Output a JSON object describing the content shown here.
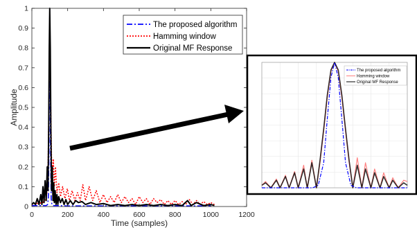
{
  "chart_data": [
    {
      "type": "line",
      "xlabel": "Time (samples)",
      "ylabel": "Amplitude",
      "xlim": [
        0,
        1200
      ],
      "ylim": [
        0,
        1
      ],
      "xticks": [
        0,
        200,
        400,
        600,
        800,
        1000,
        1200
      ],
      "yticks": [
        0,
        0.1,
        0.2,
        0.3,
        0.4,
        0.5,
        0.6,
        0.7,
        0.8,
        0.9,
        1
      ],
      "ytick_labels": [
        "0",
        "0.1",
        "0.2",
        "0.3",
        "0.4",
        "0.5",
        "0.6",
        "0.7",
        "0.8",
        "0.9",
        "1"
      ],
      "grid": false,
      "legend_position": "top-right",
      "series": [
        {
          "name": "The proposed algorithm",
          "color": "#0000ff",
          "style": "dash-dot",
          "x": [
            0,
            80,
            88,
            92,
            96,
            98,
            100,
            102,
            104,
            108,
            112,
            120,
            200,
            1000
          ],
          "y": [
            0.005,
            0.005,
            0.01,
            0.04,
            0.3,
            0.7,
            1.0,
            0.7,
            0.3,
            0.04,
            0.01,
            0.005,
            0.003,
            0.003
          ]
        },
        {
          "name": "Hamming window",
          "color": "#ff0000",
          "style": "dotted",
          "x": [
            0,
            15,
            25,
            35,
            45,
            55,
            62,
            70,
            78,
            84,
            90,
            95,
            100,
            105,
            110,
            115,
            120,
            126,
            132,
            140,
            150,
            160,
            172,
            185,
            198,
            210,
            225,
            240,
            255,
            270,
            285,
            300,
            320,
            340,
            360,
            380,
            400,
            420,
            440,
            460,
            480,
            500,
            520,
            540,
            560,
            580,
            600,
            620,
            640,
            660,
            680,
            700,
            720,
            740,
            760,
            780,
            800,
            820,
            840,
            860,
            880,
            900,
            920,
            940,
            960,
            980,
            1000,
            1020
          ],
          "y": [
            0.01,
            0.015,
            0.01,
            0.02,
            0.01,
            0.03,
            0.02,
            0.04,
            0.03,
            0.07,
            0.2,
            0.5,
            0.85,
            0.55,
            0.25,
            0.15,
            0.24,
            0.1,
            0.2,
            0.07,
            0.12,
            0.05,
            0.1,
            0.04,
            0.09,
            0.03,
            0.08,
            0.03,
            0.07,
            0.03,
            0.11,
            0.03,
            0.1,
            0.03,
            0.08,
            0.02,
            0.06,
            0.02,
            0.05,
            0.02,
            0.06,
            0.02,
            0.05,
            0.02,
            0.04,
            0.01,
            0.05,
            0.02,
            0.04,
            0.01,
            0.04,
            0.02,
            0.035,
            0.01,
            0.03,
            0.01,
            0.03,
            0.01,
            0.025,
            0.01,
            0.035,
            0.01,
            0.03,
            0.01,
            0.025,
            0.01,
            0.02,
            0.01
          ]
        },
        {
          "name": "Original MF Response",
          "color": "#000000",
          "style": "solid",
          "x": [
            0,
            10,
            20,
            30,
            40,
            50,
            56,
            62,
            68,
            74,
            80,
            86,
            90,
            94,
            97,
            100,
            103,
            106,
            110,
            114,
            118,
            122,
            126,
            130,
            135,
            140,
            145,
            150,
            160,
            170,
            180,
            190,
            200,
            215,
            230,
            245,
            260,
            280,
            300,
            330,
            360,
            400,
            440,
            480,
            520,
            560,
            600,
            640,
            680,
            720,
            760,
            800,
            840,
            870,
            890,
            920,
            960,
            1000,
            1020
          ],
          "y": [
            0.01,
            0.02,
            0.01,
            0.04,
            0.01,
            0.06,
            0.01,
            0.1,
            0.02,
            0.13,
            0.03,
            0.2,
            0.08,
            0.4,
            0.8,
            1.0,
            0.8,
            0.4,
            0.08,
            0.2,
            0.03,
            0.12,
            0.02,
            0.08,
            0.01,
            0.06,
            0.01,
            0.05,
            0.02,
            0.04,
            0.01,
            0.035,
            0.01,
            0.03,
            0.01,
            0.03,
            0.02,
            0.025,
            0.01,
            0.02,
            0.01,
            0.015,
            0.005,
            0.01,
            0.005,
            0.01,
            0.005,
            0.01,
            0.005,
            0.01,
            0.005,
            0.01,
            0.005,
            0.03,
            0.005,
            0.02,
            0.005,
            0.01,
            0.005
          ]
        }
      ]
    },
    {
      "type": "line",
      "title": "",
      "grid": true,
      "legend_position": "top-right",
      "series": [
        {
          "name": "The proposed algorithm",
          "color": "#0000ff",
          "style": "dash-dot",
          "x": [
            -4,
            -1.2,
            -0.9,
            -0.6,
            -0.4,
            -0.2,
            0,
            0.2,
            0.4,
            0.6,
            0.9,
            1.2,
            4
          ],
          "y": [
            0.0,
            0.0,
            0.02,
            0.2,
            0.55,
            0.88,
            1.0,
            0.88,
            0.55,
            0.2,
            0.02,
            0.0,
            0.0
          ]
        },
        {
          "name": "Hamming window",
          "color": "#ff8080",
          "style": "solid",
          "x": [
            -4,
            -3.8,
            -3.5,
            -3.2,
            -3.0,
            -2.7,
            -2.5,
            -2.2,
            -2.0,
            -1.7,
            -1.5,
            -1.25,
            -1.0,
            -0.8,
            -0.6,
            -0.4,
            -0.2,
            0,
            0.2,
            0.4,
            0.6,
            0.8,
            1.0,
            1.25,
            1.5,
            1.7,
            2.0,
            2.2,
            2.5,
            2.7,
            3.0,
            3.2,
            3.5,
            3.8,
            4
          ],
          "y": [
            0.02,
            0.05,
            0.0,
            0.07,
            0.0,
            0.1,
            0.0,
            0.13,
            0.0,
            0.18,
            0.0,
            0.22,
            0.0,
            0.2,
            0.45,
            0.72,
            0.93,
            1.0,
            0.93,
            0.72,
            0.45,
            0.2,
            0.0,
            0.24,
            0.0,
            0.2,
            0.0,
            0.15,
            0.0,
            0.12,
            0.0,
            0.08,
            0.0,
            0.06,
            0.05
          ]
        },
        {
          "name": "Original MF Response",
          "color": "#000000",
          "style": "solid",
          "x": [
            -4,
            -3.8,
            -3.5,
            -3.2,
            -3.0,
            -2.7,
            -2.5,
            -2.2,
            -2.0,
            -1.7,
            -1.5,
            -1.25,
            -1.0,
            -0.8,
            -0.6,
            -0.4,
            -0.2,
            0,
            0.2,
            0.4,
            0.6,
            0.8,
            1.0,
            1.25,
            1.5,
            1.7,
            2.0,
            2.2,
            2.5,
            2.7,
            3.0,
            3.2,
            3.5,
            3.8,
            4
          ],
          "y": [
            0.02,
            0.04,
            0.0,
            0.06,
            0.0,
            0.09,
            0.0,
            0.12,
            0.0,
            0.15,
            0.0,
            0.2,
            0.0,
            0.22,
            0.47,
            0.74,
            0.94,
            1.0,
            0.94,
            0.74,
            0.47,
            0.22,
            0.0,
            0.18,
            0.0,
            0.15,
            0.0,
            0.12,
            0.0,
            0.09,
            0.0,
            0.06,
            0.0,
            0.04,
            0.02
          ]
        }
      ]
    }
  ]
}
